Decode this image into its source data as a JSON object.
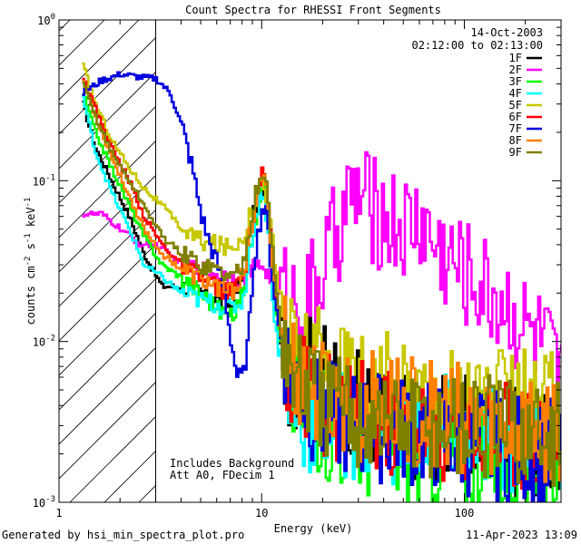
{
  "chart_data": {
    "type": "line",
    "title": "Count Spectra for RHESSI Front Segments",
    "xlabel": "Energy (keV)",
    "ylabel_parts": {
      "pre": "counts cm",
      "exp1": "-2",
      "mid1": " s",
      "exp2": "-1",
      "mid2": " keV",
      "exp3": "-1"
    },
    "xscale": "log",
    "yscale": "log",
    "xlim": [
      1,
      300
    ],
    "ylim": [
      0.001,
      1
    ],
    "x_ticks": [
      {
        "value": 1,
        "label": "1"
      },
      {
        "value": 10,
        "label": "10"
      },
      {
        "value": 100,
        "label": "100"
      }
    ],
    "y_ticks": [
      {
        "value": 0.001,
        "base": "10",
        "exp": "-3"
      },
      {
        "value": 0.01,
        "base": "10",
        "exp": "-2"
      },
      {
        "value": 0.1,
        "base": "10",
        "exp": "-1"
      },
      {
        "value": 1,
        "base": "10",
        "exp": "0"
      }
    ],
    "date": "14-Oct-2003",
    "time_range": "02:12:00 to 02:13:00",
    "hatch_region": {
      "x_from": 1,
      "x_to": 3
    },
    "annotations": [
      "Includes Background",
      "Att A0, FDecim 1"
    ],
    "series": [
      {
        "name": "1F",
        "color": "#000000",
        "points": [
          [
            1.3,
            0.3
          ],
          [
            1.5,
            0.16
          ],
          [
            1.8,
            0.1
          ],
          [
            2.2,
            0.06
          ],
          [
            2.6,
            0.035
          ],
          [
            3.2,
            0.022
          ],
          [
            4,
            0.022
          ],
          [
            5,
            0.02
          ],
          [
            6,
            0.018
          ],
          [
            7,
            0.017
          ],
          [
            8,
            0.025
          ],
          [
            9,
            0.06
          ],
          [
            10,
            0.085
          ],
          [
            10.5,
            0.06
          ],
          [
            11,
            0.03
          ],
          [
            12,
            0.01
          ],
          [
            14,
            0.006
          ],
          [
            17,
            0.008
          ],
          [
            20,
            0.006
          ],
          [
            30,
            0.004
          ],
          [
            50,
            0.003
          ],
          [
            80,
            0.003
          ],
          [
            150,
            0.0025
          ],
          [
            300,
            0.002
          ]
        ]
      },
      {
        "name": "2F",
        "color": "#ff00ff",
        "points": [
          [
            1.3,
            0.062
          ],
          [
            1.6,
            0.062
          ],
          [
            2,
            0.05
          ],
          [
            2.5,
            0.04
          ],
          [
            3,
            0.04
          ],
          [
            4,
            0.03
          ],
          [
            5,
            0.028
          ],
          [
            6,
            0.026
          ],
          [
            7,
            0.025
          ],
          [
            8,
            0.025
          ],
          [
            9,
            0.028
          ],
          [
            10,
            0.03
          ],
          [
            12,
            0.02
          ],
          [
            15,
            0.018
          ],
          [
            18,
            0.02
          ],
          [
            22,
            0.04
          ],
          [
            26,
            0.07
          ],
          [
            30,
            0.083
          ],
          [
            35,
            0.065
          ],
          [
            40,
            0.06
          ],
          [
            50,
            0.05
          ],
          [
            60,
            0.057
          ],
          [
            70,
            0.04
          ],
          [
            90,
            0.03
          ],
          [
            120,
            0.022
          ],
          [
            160,
            0.017
          ],
          [
            200,
            0.012
          ],
          [
            250,
            0.009
          ],
          [
            300,
            0.005
          ]
        ]
      },
      {
        "name": "3F",
        "color": "#00ff00",
        "points": [
          [
            1.3,
            0.35
          ],
          [
            1.5,
            0.2
          ],
          [
            1.8,
            0.12
          ],
          [
            2.2,
            0.07
          ],
          [
            2.6,
            0.045
          ],
          [
            3.2,
            0.03
          ],
          [
            4,
            0.025
          ],
          [
            5,
            0.02
          ],
          [
            6,
            0.016
          ],
          [
            7,
            0.014
          ],
          [
            8,
            0.02
          ],
          [
            9,
            0.05
          ],
          [
            10,
            0.1
          ],
          [
            10.5,
            0.07
          ],
          [
            11,
            0.03
          ],
          [
            12,
            0.01
          ],
          [
            14,
            0.005
          ],
          [
            17,
            0.004
          ],
          [
            20,
            0.003
          ],
          [
            30,
            0.0025
          ],
          [
            50,
            0.002
          ],
          [
            80,
            0.002
          ],
          [
            150,
            0.0018
          ],
          [
            300,
            0.0015
          ]
        ]
      },
      {
        "name": "4F",
        "color": "#00ffff",
        "points": [
          [
            1.3,
            0.33
          ],
          [
            1.5,
            0.15
          ],
          [
            1.8,
            0.085
          ],
          [
            2.2,
            0.05
          ],
          [
            2.6,
            0.03
          ],
          [
            3.2,
            0.025
          ],
          [
            4,
            0.02
          ],
          [
            5,
            0.018
          ],
          [
            6,
            0.017
          ],
          [
            7,
            0.016
          ],
          [
            8,
            0.018
          ],
          [
            9,
            0.05
          ],
          [
            10,
            0.09
          ],
          [
            10.5,
            0.06
          ],
          [
            11,
            0.025
          ],
          [
            12,
            0.008
          ],
          [
            14,
            0.004
          ],
          [
            17,
            0.0032
          ],
          [
            20,
            0.003
          ],
          [
            30,
            0.003
          ],
          [
            50,
            0.0028
          ],
          [
            80,
            0.0028
          ],
          [
            150,
            0.0025
          ],
          [
            300,
            0.0025
          ]
        ]
      },
      {
        "name": "5F",
        "color": "#c8c800",
        "points": [
          [
            1.3,
            0.52
          ],
          [
            1.5,
            0.3
          ],
          [
            1.8,
            0.18
          ],
          [
            2.2,
            0.12
          ],
          [
            2.6,
            0.09
          ],
          [
            3.2,
            0.07
          ],
          [
            4,
            0.05
          ],
          [
            5,
            0.042
          ],
          [
            6,
            0.04
          ],
          [
            7,
            0.038
          ],
          [
            8,
            0.045
          ],
          [
            9,
            0.07
          ],
          [
            10,
            0.11
          ],
          [
            10.5,
            0.08
          ],
          [
            11,
            0.05
          ],
          [
            12,
            0.02
          ],
          [
            14,
            0.009
          ],
          [
            17,
            0.008
          ],
          [
            20,
            0.007
          ],
          [
            30,
            0.006
          ],
          [
            50,
            0.005
          ],
          [
            80,
            0.005
          ],
          [
            150,
            0.004
          ],
          [
            300,
            0.004
          ]
        ]
      },
      {
        "name": "6F",
        "color": "#ff0000",
        "points": [
          [
            1.3,
            0.45
          ],
          [
            1.5,
            0.28
          ],
          [
            1.8,
            0.16
          ],
          [
            2.2,
            0.1
          ],
          [
            2.6,
            0.06
          ],
          [
            3.2,
            0.04
          ],
          [
            4,
            0.03
          ],
          [
            5,
            0.025
          ],
          [
            6,
            0.022
          ],
          [
            7,
            0.02
          ],
          [
            8,
            0.025
          ],
          [
            9,
            0.06
          ],
          [
            10,
            0.12
          ],
          [
            10.5,
            0.08
          ],
          [
            11,
            0.04
          ],
          [
            12,
            0.012
          ],
          [
            14,
            0.006
          ],
          [
            17,
            0.005
          ],
          [
            20,
            0.004
          ],
          [
            30,
            0.0035
          ],
          [
            50,
            0.003
          ],
          [
            80,
            0.003
          ],
          [
            150,
            0.0028
          ],
          [
            300,
            0.0025
          ]
        ]
      },
      {
        "name": "7F",
        "color": "#0000dd",
        "points": [
          [
            1.3,
            0.35
          ],
          [
            1.6,
            0.42
          ],
          [
            2,
            0.46
          ],
          [
            2.5,
            0.44
          ],
          [
            3,
            0.43
          ],
          [
            3.5,
            0.35
          ],
          [
            4,
            0.22
          ],
          [
            4.5,
            0.12
          ],
          [
            5,
            0.06
          ],
          [
            5.5,
            0.04
          ],
          [
            6,
            0.03
          ],
          [
            6.5,
            0.02
          ],
          [
            7,
            0.01
          ],
          [
            7.5,
            0.006
          ],
          [
            8,
            0.006
          ],
          [
            8.5,
            0.01
          ],
          [
            9,
            0.03
          ],
          [
            10,
            0.07
          ],
          [
            10.5,
            0.06
          ],
          [
            11,
            0.03
          ],
          [
            12,
            0.012
          ],
          [
            14,
            0.006
          ],
          [
            17,
            0.004
          ],
          [
            20,
            0.0035
          ],
          [
            30,
            0.003
          ],
          [
            50,
            0.0028
          ],
          [
            80,
            0.0025
          ],
          [
            150,
            0.0022
          ],
          [
            300,
            0.002
          ]
        ]
      },
      {
        "name": "8F",
        "color": "#ff8000",
        "points": [
          [
            1.3,
            0.42
          ],
          [
            1.5,
            0.25
          ],
          [
            1.8,
            0.14
          ],
          [
            2.2,
            0.08
          ],
          [
            2.6,
            0.05
          ],
          [
            3.2,
            0.035
          ],
          [
            4,
            0.028
          ],
          [
            5,
            0.024
          ],
          [
            6,
            0.022
          ],
          [
            7,
            0.02
          ],
          [
            8,
            0.026
          ],
          [
            9,
            0.06
          ],
          [
            10,
            0.11
          ],
          [
            10.5,
            0.08
          ],
          [
            11,
            0.04
          ],
          [
            12,
            0.015
          ],
          [
            14,
            0.007
          ],
          [
            17,
            0.005
          ],
          [
            20,
            0.0045
          ],
          [
            30,
            0.004
          ],
          [
            50,
            0.0038
          ],
          [
            80,
            0.0035
          ],
          [
            150,
            0.003
          ],
          [
            300,
            0.0028
          ]
        ]
      },
      {
        "name": "9F",
        "color": "#808000",
        "points": [
          [
            1.3,
            0.4
          ],
          [
            1.5,
            0.25
          ],
          [
            1.8,
            0.15
          ],
          [
            2.2,
            0.1
          ],
          [
            2.6,
            0.07
          ],
          [
            3.2,
            0.045
          ],
          [
            4,
            0.035
          ],
          [
            5,
            0.03
          ],
          [
            6,
            0.028
          ],
          [
            7,
            0.025
          ],
          [
            8,
            0.03
          ],
          [
            9,
            0.07
          ],
          [
            10,
            0.12
          ],
          [
            10.5,
            0.085
          ],
          [
            11,
            0.045
          ],
          [
            12,
            0.015
          ],
          [
            14,
            0.006
          ],
          [
            17,
            0.005
          ],
          [
            20,
            0.004
          ],
          [
            30,
            0.0035
          ],
          [
            50,
            0.003
          ],
          [
            80,
            0.003
          ],
          [
            150,
            0.0028
          ],
          [
            300,
            0.0025
          ]
        ]
      }
    ]
  },
  "footer": {
    "generated_by": "Generated by hsi_min_spectra_plot.pro",
    "timestamp": "11-Apr-2023 13:09"
  }
}
